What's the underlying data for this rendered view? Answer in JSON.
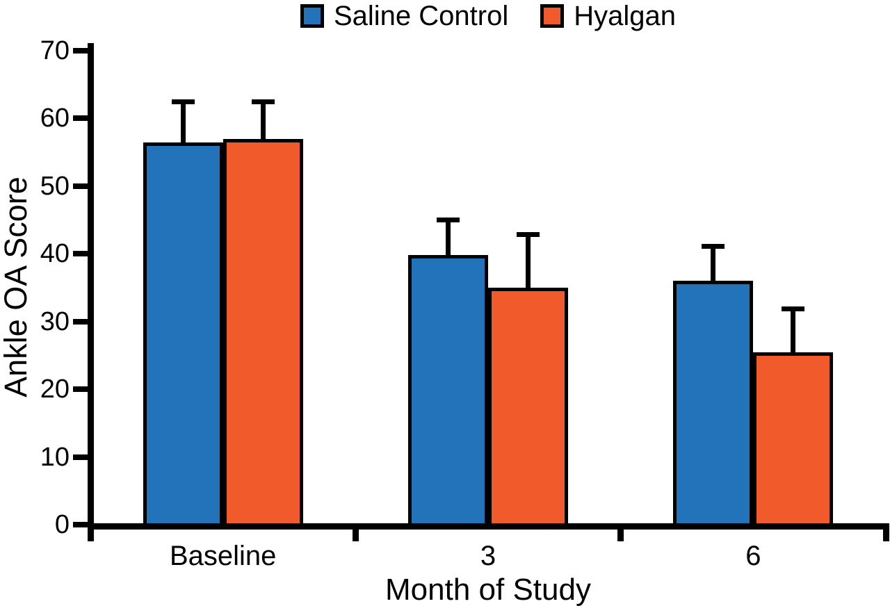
{
  "chart_data": {
    "type": "bar",
    "title": "",
    "categories": [
      "Baseline",
      "3",
      "6"
    ],
    "series": [
      {
        "name": "Saline Control",
        "color": "#2273B9",
        "values": [
          56.5,
          39.8,
          36.0
        ],
        "errors_upper": [
          5.7,
          5.0,
          4.8
        ]
      },
      {
        "name": "Hyalgan",
        "color": "#F15B2B",
        "values": [
          57.0,
          35.0,
          25.5
        ],
        "errors_upper": [
          5.2,
          7.6,
          6.1
        ]
      }
    ],
    "xlabel": "Month of Study",
    "ylabel": "Ankle OA Score",
    "ylim": [
      0,
      70
    ],
    "yticks": [
      0,
      10,
      20,
      30,
      40,
      50,
      60,
      70
    ],
    "grid": false,
    "legend_position": "top",
    "error_bars": "upper-only",
    "bar_outline_color": "#000000",
    "background_color": "#FFFFFF"
  }
}
